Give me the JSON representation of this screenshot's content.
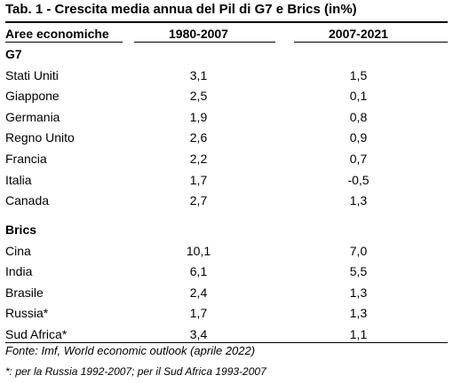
{
  "title": "Tab. 1 - Crescita media annua del Pil di G7 e Brics (in%)",
  "source": "Fonte: Imf, World economic outlook (aprile 2022)",
  "footnote": "*: per la Russia 1992-2007; per il Sud Africa 1993-2007",
  "chart_data": {
    "type": "table",
    "title": "Tab. 1 - Crescita media annua del Pil di G7 e Brics (in%)",
    "columns": [
      "Aree economiche",
      "1980-2007",
      "2007-2021"
    ],
    "groups": [
      {
        "name": "G7",
        "rows": [
          {
            "label": "Stati Uniti",
            "v1": "3,1",
            "v2": "1,5"
          },
          {
            "label": "Giappone",
            "v1": "2,5",
            "v2": "0,1"
          },
          {
            "label": "Germania",
            "v1": "1,9",
            "v2": "0,8"
          },
          {
            "label": "Regno Unito",
            "v1": "2,6",
            "v2": "0,9"
          },
          {
            "label": "Francia",
            "v1": "2,2",
            "v2": "0,7"
          },
          {
            "label": "Italia",
            "v1": "1,7",
            "v2": "-0,5"
          },
          {
            "label": "Canada",
            "v1": "2,7",
            "v2": "1,3"
          }
        ]
      },
      {
        "name": "Brics",
        "rows": [
          {
            "label": "Cina",
            "v1": "10,1",
            "v2": "7,0"
          },
          {
            "label": "India",
            "v1": "6,1",
            "v2": "5,5"
          },
          {
            "label": "Brasile",
            "v1": "2,4",
            "v2": "1,3"
          },
          {
            "label": "Russia*",
            "v1": "1,7",
            "v2": "1,3"
          },
          {
            "label": "Sud Africa*",
            "v1": "3,4",
            "v2": "1,1"
          }
        ]
      }
    ]
  }
}
